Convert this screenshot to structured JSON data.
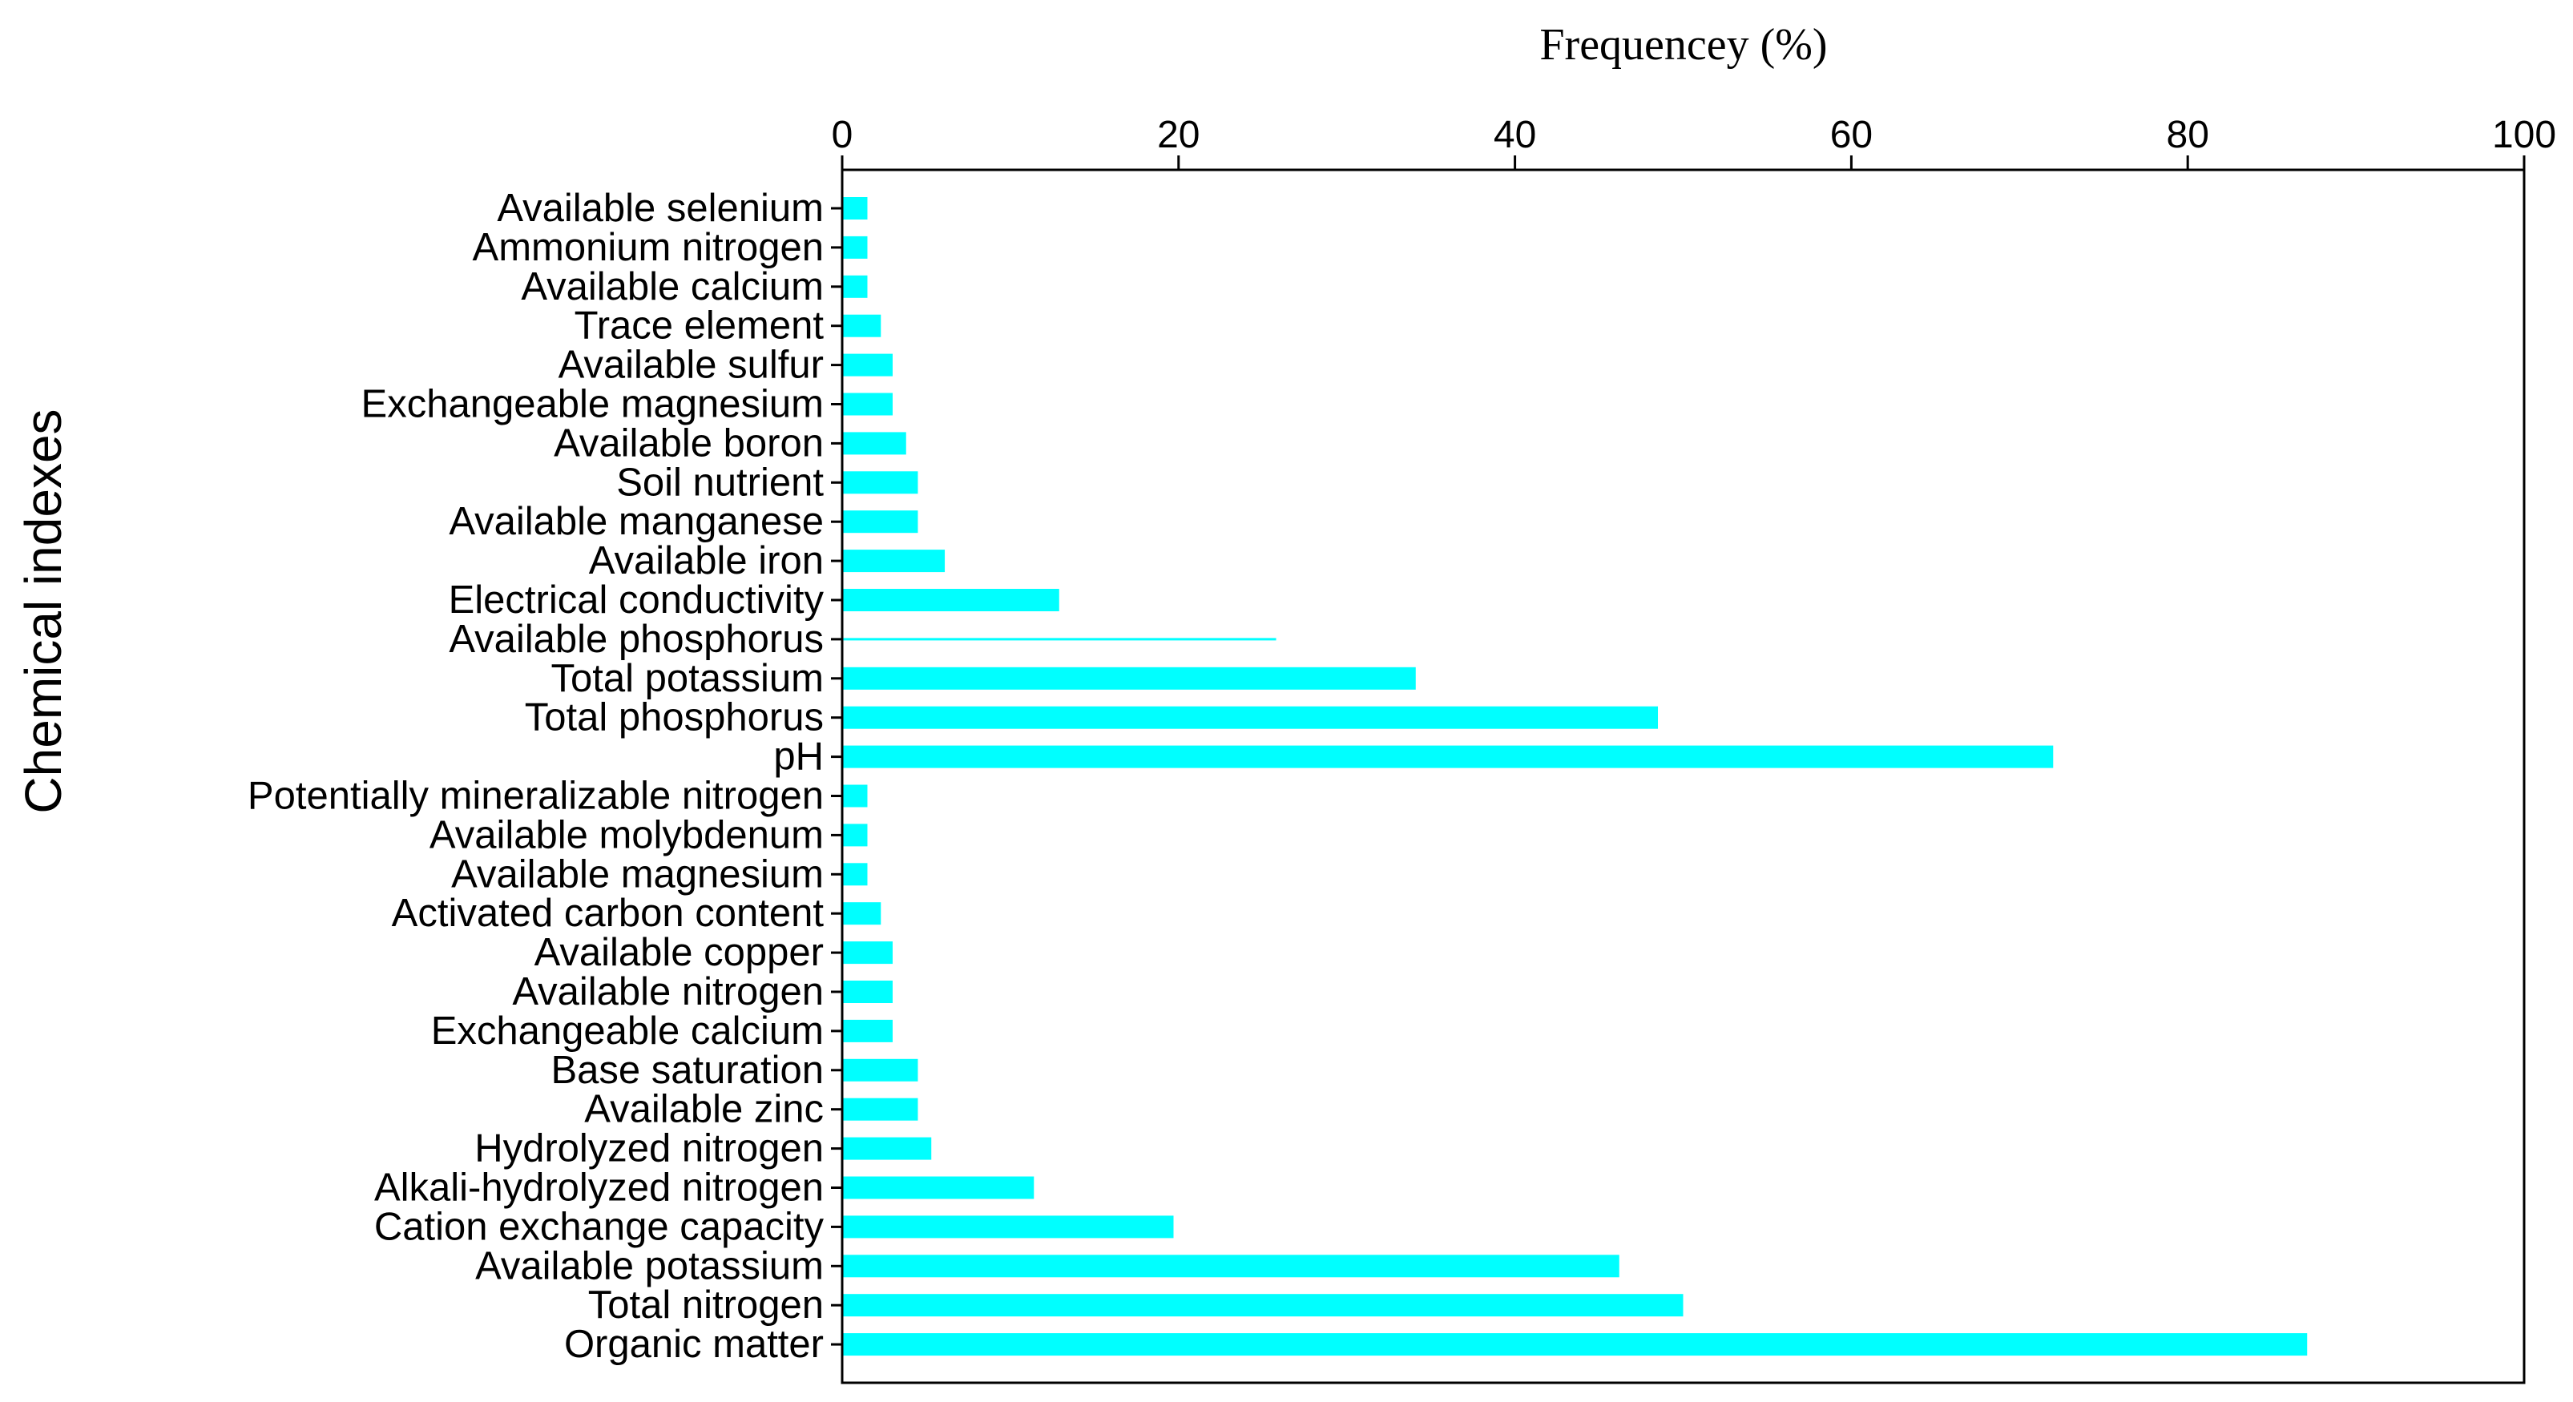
{
  "chart_data": {
    "type": "bar",
    "orientation": "horizontal",
    "title": "",
    "xlabel": "Frequencey (%)",
    "ylabel": "Chemical indexes",
    "xlim": [
      0,
      100
    ],
    "xticks": [
      "0",
      "20",
      "40",
      "60",
      "80",
      "100"
    ],
    "grid": false,
    "x_axis_position": "top",
    "bar_color": "#00FFFF",
    "categories": [
      "Available selenium",
      "Ammonium nitrogen",
      "Available calcium",
      "Trace element",
      "Available sulfur",
      "Exchangeable magnesium",
      "Available boron",
      "Soil nutrient",
      "Available manganese",
      "Available iron",
      "Electrical conductivity",
      "Available phosphorus",
      "Total potassium",
      "Total phosphorus",
      "pH",
      "Potentially mineralizable nitrogen",
      "Available molybdenum",
      "Available magnesium",
      "Activated carbon content",
      "Available copper",
      "Available nitrogen",
      "Exchangeable calcium",
      "Base saturation",
      "Available zinc",
      "Hydrolyzed nitrogen",
      "Alkali-hydrolyzed nitrogen",
      "Cation exchange capacity",
      "Available potassium",
      "Total nitrogen",
      "Organic matter"
    ],
    "values": [
      1.5,
      1.5,
      1.5,
      2.3,
      3.0,
      3.0,
      3.8,
      4.5,
      4.5,
      6.1,
      12.9,
      25.8,
      34.1,
      48.5,
      72.0,
      1.5,
      1.5,
      1.5,
      2.3,
      3.0,
      3.0,
      3.0,
      4.5,
      4.5,
      5.3,
      11.4,
      19.7,
      46.2,
      50.0,
      87.1
    ],
    "thin_bars": [
      "Available phosphorus"
    ]
  }
}
